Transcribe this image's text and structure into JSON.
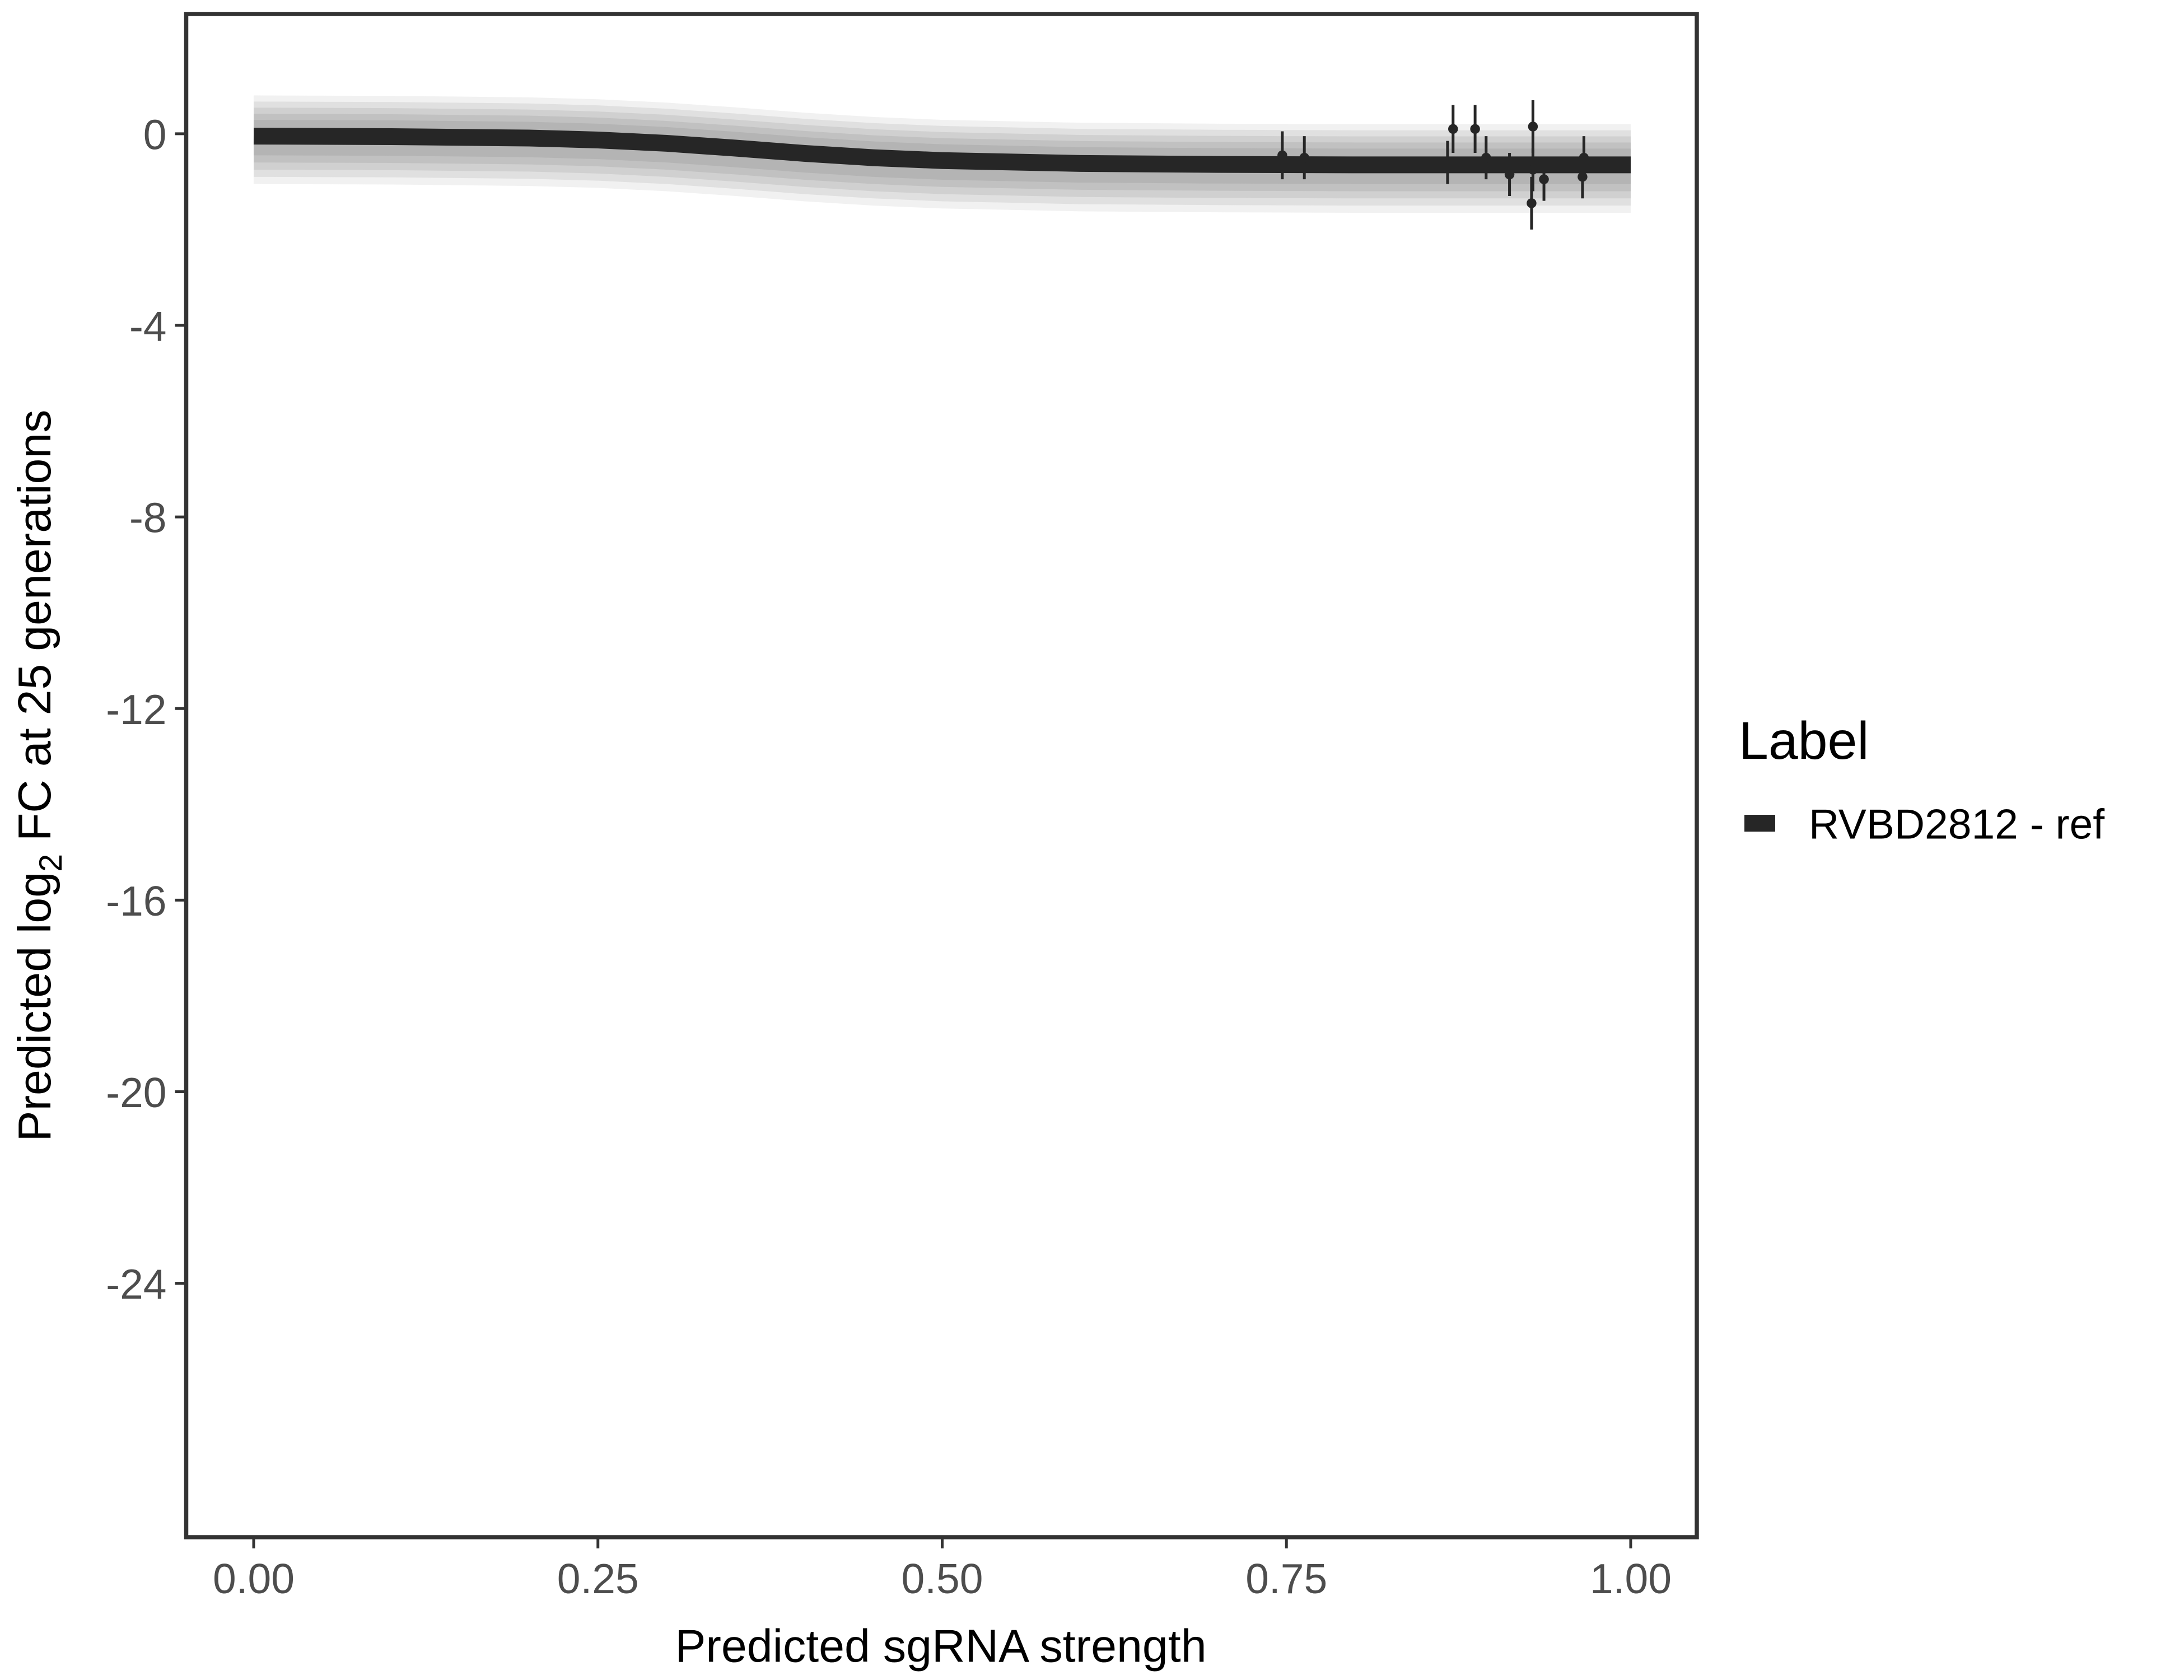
{
  "chart_data": {
    "type": "line",
    "xlabel": "Predicted sgRNA strength",
    "ylabel_parts": {
      "pre": "Predicted  log",
      "sub": "2",
      "post": " FC at 25 generations"
    },
    "xlim": [
      -0.049,
      1.048
    ],
    "ylim": [
      -29.3,
      2.5
    ],
    "x_ticks": [
      "0.00",
      "0.25",
      "0.50",
      "0.75",
      "1.00"
    ],
    "x_tick_values": [
      0,
      0.25,
      0.5,
      0.75,
      1
    ],
    "y_ticks": [
      "0",
      "-4",
      "-8",
      "-12",
      "-16",
      "-20",
      "-24"
    ],
    "y_tick_values": [
      0,
      -4,
      -8,
      -12,
      -16,
      -20,
      -24
    ],
    "grid": false,
    "legend": {
      "title": "Label",
      "position": "right",
      "entries": [
        "RVBD2812 - ref"
      ]
    },
    "colors": {
      "line": "#262626",
      "band": "#9e9e9e"
    },
    "series": [
      {
        "name": "RVBD2812 - ref",
        "curve": {
          "x": [
            0,
            0.1,
            0.2,
            0.25,
            0.3,
            0.35,
            0.4,
            0.45,
            0.5,
            0.6,
            0.7,
            0.8,
            0.9,
            1.0
          ],
          "y": [
            -0.05,
            -0.06,
            -0.09,
            -0.13,
            -0.2,
            -0.3,
            -0.41,
            -0.5,
            -0.56,
            -0.62,
            -0.64,
            -0.65,
            -0.65,
            -0.65
          ]
        },
        "points": [
          {
            "x": 0.747,
            "y": -0.45,
            "err": 0.5
          },
          {
            "x": 0.763,
            "y": -0.5,
            "err": 0.45
          },
          {
            "x": 0.867,
            "y": -0.6,
            "err": 0.45
          },
          {
            "x": 0.871,
            "y": 0.1,
            "err": 0.5
          },
          {
            "x": 0.887,
            "y": 0.1,
            "err": 0.5
          },
          {
            "x": 0.895,
            "y": -0.5,
            "err": 0.45
          },
          {
            "x": 0.912,
            "y": -0.85,
            "err": 0.45
          },
          {
            "x": 0.929,
            "y": 0.15,
            "err": 0.55
          },
          {
            "x": 0.929,
            "y": -0.75,
            "err": 0.45
          },
          {
            "x": 0.928,
            "y": -1.45,
            "err": 0.55
          },
          {
            "x": 0.937,
            "y": -0.95,
            "err": 0.45
          },
          {
            "x": 0.966,
            "y": -0.5,
            "err": 0.45
          },
          {
            "x": 0.965,
            "y": -0.9,
            "err": 0.45
          }
        ]
      }
    ]
  }
}
